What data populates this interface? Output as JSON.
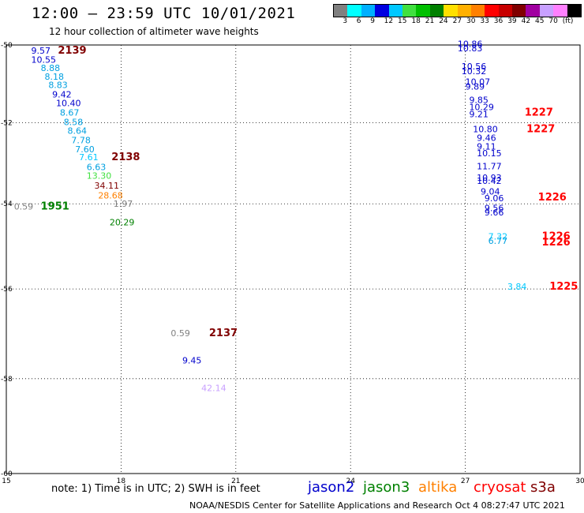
{
  "title": "12:00 — 23:59 UTC 10/01/2021",
  "subtitle": "12 hour collection of altimeter wave heights",
  "colorbar": {
    "colors": [
      "#808080",
      "#00ffff",
      "#00b0ff",
      "#0000e0",
      "#00c8ff",
      "#40e040",
      "#00c000",
      "#008000",
      "#ffe000",
      "#ffb000",
      "#ff8000",
      "#ff0000",
      "#c80000",
      "#800000",
      "#a000a0",
      "#c8a0ff",
      "#ff80ff",
      "#000000"
    ],
    "ticks": [
      "3",
      "6",
      "9",
      "12",
      "15",
      "18",
      "21",
      "24",
      "27",
      "30",
      "33",
      "36",
      "39",
      "42",
      "45",
      "70",
      "(ft)"
    ]
  },
  "axes": {
    "x_ticks": [
      "15",
      "18",
      "21",
      "24",
      "27",
      "30"
    ],
    "y_ticks": [
      "-50",
      "-52",
      "-54",
      "-56",
      "-58",
      "-60"
    ]
  },
  "labels": [
    {
      "text": "9.57",
      "lon": 15.65,
      "lat": -50.15,
      "color": "#0000cc",
      "size": 11
    },
    {
      "text": "2139",
      "lon": 16.35,
      "lat": -50.15,
      "color": "#800000",
      "size": 13,
      "bold": true
    },
    {
      "text": "10.55",
      "lon": 15.65,
      "lat": -50.38,
      "color": "#0000cc",
      "size": 11
    },
    {
      "text": "8.88",
      "lon": 15.9,
      "lat": -50.6,
      "color": "#00a0e0",
      "size": 11
    },
    {
      "text": "8.18",
      "lon": 16.0,
      "lat": -50.82,
      "color": "#00a0e0",
      "size": 11
    },
    {
      "text": "8.83",
      "lon": 16.1,
      "lat": -51.04,
      "color": "#00a0e0",
      "size": 11
    },
    {
      "text": "9.42",
      "lon": 16.2,
      "lat": -51.28,
      "color": "#0000cc",
      "size": 11
    },
    {
      "text": "10.40",
      "lon": 16.3,
      "lat": -51.5,
      "color": "#0000cc",
      "size": 11
    },
    {
      "text": "8.67",
      "lon": 16.4,
      "lat": -51.74,
      "color": "#00a0e0",
      "size": 11
    },
    {
      "text": "8.58",
      "lon": 16.5,
      "lat": -51.98,
      "color": "#00a0e0",
      "size": 11
    },
    {
      "text": "8.64",
      "lon": 16.6,
      "lat": -52.2,
      "color": "#00a0e0",
      "size": 11
    },
    {
      "text": "7.78",
      "lon": 16.7,
      "lat": -52.44,
      "color": "#00a0e0",
      "size": 11
    },
    {
      "text": "7.60",
      "lon": 16.8,
      "lat": -52.66,
      "color": "#00a0e0",
      "size": 11
    },
    {
      "text": "7.61",
      "lon": 16.9,
      "lat": -52.86,
      "color": "#00c8ff",
      "size": 11
    },
    {
      "text": "2138",
      "lon": 17.75,
      "lat": -52.86,
      "color": "#800000",
      "size": 13,
      "bold": true
    },
    {
      "text": "6.63",
      "lon": 17.1,
      "lat": -53.1,
      "color": "#00a0e0",
      "size": 11
    },
    {
      "text": "13.30",
      "lon": 17.1,
      "lat": -53.32,
      "color": "#40e040",
      "size": 11
    },
    {
      "text": "34.11",
      "lon": 17.3,
      "lat": -53.56,
      "color": "#800000",
      "size": 11
    },
    {
      "text": "28.68",
      "lon": 17.4,
      "lat": -53.8,
      "color": "#ff8000",
      "size": 11
    },
    {
      "text": "0.59",
      "lon": 15.2,
      "lat": -54.06,
      "color": "#808080",
      "size": 11
    },
    {
      "text": "1951",
      "lon": 15.9,
      "lat": -54.06,
      "color": "#008000",
      "size": 13,
      "bold": true
    },
    {
      "text": "1.97",
      "lon": 17.8,
      "lat": -54.0,
      "color": "#808080",
      "size": 11
    },
    {
      "text": "20.29",
      "lon": 17.7,
      "lat": -54.44,
      "color": "#008000",
      "size": 11
    },
    {
      "text": "0.59",
      "lon": 19.3,
      "lat": -57.0,
      "color": "#808080",
      "size": 11
    },
    {
      "text": "2137",
      "lon": 20.3,
      "lat": -57.0,
      "color": "#800000",
      "size": 13,
      "bold": true
    },
    {
      "text": "9.45",
      "lon": 19.6,
      "lat": -57.6,
      "color": "#0000cc",
      "size": 11
    },
    {
      "text": "42.14",
      "lon": 20.1,
      "lat": -58.2,
      "color": "#c8a0ff",
      "size": 11
    },
    {
      "text": "10.86",
      "lon": 26.8,
      "lat": -49.97,
      "color": "#0000cc",
      "size": 11
    },
    {
      "text": "10.83",
      "lon": 26.8,
      "lat": -50.08,
      "color": "#0000cc",
      "size": 11
    },
    {
      "text": "10.56",
      "lon": 26.9,
      "lat": -50.56,
      "color": "#0000cc",
      "size": 11
    },
    {
      "text": "10.32",
      "lon": 26.9,
      "lat": -50.68,
      "color": "#0000cc",
      "size": 11
    },
    {
      "text": "10.07",
      "lon": 27.0,
      "lat": -50.96,
      "color": "#0000cc",
      "size": 11
    },
    {
      "text": "9.89",
      "lon": 27.0,
      "lat": -51.08,
      "color": "#0000cc",
      "size": 11
    },
    {
      "text": "9.85",
      "lon": 27.1,
      "lat": -51.42,
      "color": "#0000cc",
      "size": 11
    },
    {
      "text": "1227",
      "lon": 28.55,
      "lat": -51.74,
      "color": "#ff0000",
      "size": 13,
      "bold": true
    },
    {
      "text": "10.29",
      "lon": 27.1,
      "lat": -51.6,
      "color": "#0000cc",
      "size": 11
    },
    {
      "text": "9.21",
      "lon": 27.1,
      "lat": -51.78,
      "color": "#0000cc",
      "size": 11
    },
    {
      "text": "1227",
      "lon": 28.6,
      "lat": -52.16,
      "color": "#ff0000",
      "size": 13,
      "bold": true
    },
    {
      "text": "10.80",
      "lon": 27.2,
      "lat": -52.16,
      "color": "#0000cc",
      "size": 11
    },
    {
      "text": "9.46",
      "lon": 27.3,
      "lat": -52.38,
      "color": "#0000cc",
      "size": 11
    },
    {
      "text": "9.11",
      "lon": 27.3,
      "lat": -52.6,
      "color": "#0000cc",
      "size": 11
    },
    {
      "text": "10.15",
      "lon": 27.3,
      "lat": -52.76,
      "color": "#0000cc",
      "size": 11
    },
    {
      "text": "11.77",
      "lon": 27.3,
      "lat": -53.08,
      "color": "#0000cc",
      "size": 11
    },
    {
      "text": "10.93",
      "lon": 27.3,
      "lat": -53.36,
      "color": "#0000cc",
      "size": 11
    },
    {
      "text": "10.42",
      "lon": 27.3,
      "lat": -53.44,
      "color": "#0000cc",
      "size": 11
    },
    {
      "text": "9.04",
      "lon": 27.4,
      "lat": -53.7,
      "color": "#0000cc",
      "size": 11
    },
    {
      "text": "1226",
      "lon": 28.9,
      "lat": -53.84,
      "color": "#ff0000",
      "size": 13,
      "bold": true
    },
    {
      "text": "9.06",
      "lon": 27.5,
      "lat": -53.86,
      "color": "#0000cc",
      "size": 11
    },
    {
      "text": "9.56",
      "lon": 27.5,
      "lat": -54.1,
      "color": "#0000cc",
      "size": 11
    },
    {
      "text": "9.66",
      "lon": 27.5,
      "lat": -54.2,
      "color": "#0000cc",
      "size": 11
    },
    {
      "text": "7.32",
      "lon": 27.6,
      "lat": -54.78,
      "color": "#00c8ff",
      "size": 11
    },
    {
      "text": "1226",
      "lon": 29.0,
      "lat": -54.78,
      "color": "#ff0000",
      "size": 13,
      "bold": true
    },
    {
      "text": "6.77",
      "lon": 27.6,
      "lat": -54.88,
      "color": "#00a0e0",
      "size": 11
    },
    {
      "text": "1226",
      "lon": 29.0,
      "lat": -54.92,
      "color": "#ff0000",
      "size": 13,
      "bold": true
    },
    {
      "text": "3.84",
      "lon": 28.1,
      "lat": -55.94,
      "color": "#00c8ff",
      "size": 11
    },
    {
      "text": "1225",
      "lon": 29.2,
      "lat": -55.94,
      "color": "#ff0000",
      "size": 13,
      "bold": true
    }
  ],
  "note": "note: 1) Time is in UTC; 2) SWH is in feet",
  "legend": [
    {
      "name": "jason2",
      "color": "#0000cc"
    },
    {
      "name": "jason3",
      "color": "#008000"
    },
    {
      "name": "altika",
      "color": "#ff8000"
    },
    {
      "name": "cryosat",
      "color": "#ff0000"
    },
    {
      "name": "s3a",
      "color": "#800000"
    }
  ],
  "credit": "NOAA/NESDIS Center for Satellite Applications and Research   Oct  4 08:27:47 UTC 2021"
}
